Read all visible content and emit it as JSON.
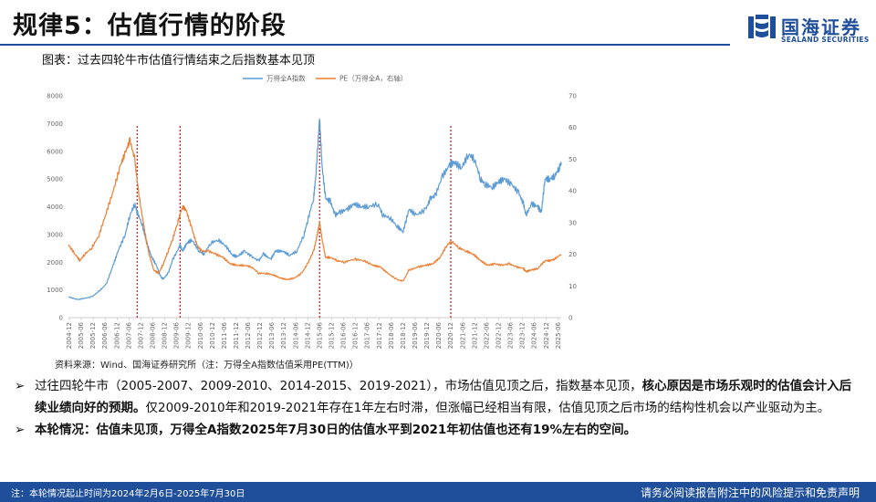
{
  "header": {
    "title": "规律5：估值行情的阶段",
    "logo_cn": "国海证券",
    "logo_en": "SEALAND SECURITIES"
  },
  "figure": {
    "caption": "图表：过去四轮牛市估值行情结束之后指数基本见顶",
    "source": "资料来源：Wind、国海证券研究所（注：万得全A指数估值采用PE(TTM)）"
  },
  "chart_data": {
    "type": "line",
    "title": "",
    "legend_position": "top-center",
    "grid": false,
    "x_labels": [
      "2004-12",
      "2005-06",
      "2005-12",
      "2006-06",
      "2006-12",
      "2007-06",
      "2007-12",
      "2008-06",
      "2008-12",
      "2009-06",
      "2009-12",
      "2010-06",
      "2010-12",
      "2011-06",
      "2011-12",
      "2012-06",
      "2012-12",
      "2013-06",
      "2013-12",
      "2014-06",
      "2014-12",
      "2015-06",
      "2015-12",
      "2016-06",
      "2016-12",
      "2017-06",
      "2017-12",
      "2018-06",
      "2018-12",
      "2019-06",
      "2019-12",
      "2020-06",
      "2020-12",
      "2021-06",
      "2021-12",
      "2022-06",
      "2022-12",
      "2023-06",
      "2023-12",
      "2024-06",
      "2024-12",
      "2025-06"
    ],
    "y_left": {
      "min": 0,
      "max": 8000,
      "ticks": [
        0,
        1000,
        2000,
        3000,
        4000,
        5000,
        6000,
        7000,
        8000
      ]
    },
    "y_right": {
      "min": 0,
      "max": 70,
      "ticks": [
        0,
        10,
        20,
        30,
        40,
        50,
        60,
        70
      ]
    },
    "series": [
      {
        "name": "万得全A指数",
        "axis": "left",
        "color": "#5b9bd5",
        "x": [
          2004.92,
          2005.3,
          2005.5,
          2005.9,
          2006.2,
          2006.5,
          2006.8,
          2007.0,
          2007.3,
          2007.5,
          2007.7,
          2007.8,
          2008.0,
          2008.2,
          2008.4,
          2008.6,
          2008.8,
          2008.9,
          2009.1,
          2009.3,
          2009.6,
          2009.7,
          2009.9,
          2010.1,
          2010.4,
          2010.6,
          2010.9,
          2011.2,
          2011.5,
          2011.8,
          2012.0,
          2012.3,
          2012.6,
          2012.9,
          2013.1,
          2013.4,
          2013.6,
          2013.9,
          2014.2,
          2014.5,
          2014.8,
          2014.95,
          2015.2,
          2015.3,
          2015.45,
          2015.55,
          2015.7,
          2015.9,
          2016.1,
          2016.3,
          2016.6,
          2016.9,
          2017.2,
          2017.5,
          2017.9,
          2018.1,
          2018.4,
          2018.7,
          2018.95,
          2019.2,
          2019.5,
          2019.9,
          2020.1,
          2020.3,
          2020.6,
          2020.9,
          2021.1,
          2021.4,
          2021.7,
          2021.95,
          2022.2,
          2022.4,
          2022.7,
          2022.95,
          2023.2,
          2023.5,
          2023.8,
          2024.0,
          2024.1,
          2024.35,
          2024.6,
          2024.75,
          2024.9,
          2025.1,
          2025.3,
          2025.5,
          2025.58
        ],
        "values": [
          750,
          650,
          680,
          750,
          950,
          1200,
          1900,
          2400,
          3000,
          3700,
          4100,
          3800,
          3400,
          2700,
          2200,
          1900,
          1450,
          1400,
          1600,
          2100,
          2600,
          2400,
          2700,
          2800,
          2400,
          2300,
          2700,
          2800,
          2600,
          2250,
          2200,
          2400,
          2200,
          2050,
          2300,
          2100,
          2400,
          2400,
          2250,
          2400,
          3000,
          3500,
          4300,
          5200,
          7200,
          5500,
          4300,
          4200,
          3700,
          3800,
          3900,
          4100,
          4000,
          4000,
          4100,
          3700,
          3600,
          3300,
          3100,
          3900,
          3700,
          3900,
          4300,
          4400,
          5100,
          5500,
          5600,
          5400,
          5900,
          5700,
          5000,
          4800,
          4700,
          4900,
          5000,
          4800,
          4500,
          4100,
          3700,
          4100,
          4000,
          3800,
          5000,
          5000,
          5100,
          5400,
          5600
        ]
      },
      {
        "name": "PE（万得全A，右轴）",
        "axis": "right",
        "color": "#ed7d31",
        "x": [
          2004.92,
          2005.2,
          2005.4,
          2005.6,
          2005.9,
          2006.2,
          2006.5,
          2006.8,
          2007.1,
          2007.3,
          2007.5,
          2007.7,
          2007.85,
          2008.1,
          2008.3,
          2008.5,
          2008.7,
          2008.9,
          2009.1,
          2009.3,
          2009.5,
          2009.7,
          2009.85,
          2010.1,
          2010.3,
          2010.5,
          2010.8,
          2011.1,
          2011.4,
          2011.7,
          2012.0,
          2012.3,
          2012.6,
          2012.9,
          2013.2,
          2013.5,
          2013.8,
          2014.1,
          2014.4,
          2014.7,
          2014.95,
          2015.2,
          2015.35,
          2015.45,
          2015.55,
          2015.7,
          2015.9,
          2016.2,
          2016.5,
          2016.9,
          2017.3,
          2017.7,
          2018.0,
          2018.3,
          2018.7,
          2018.95,
          2019.2,
          2019.6,
          2019.9,
          2020.2,
          2020.5,
          2020.8,
          2021.0,
          2021.3,
          2021.6,
          2021.9,
          2022.2,
          2022.5,
          2022.8,
          2023.1,
          2023.4,
          2023.7,
          2024.0,
          2024.1,
          2024.3,
          2024.6,
          2024.9,
          2025.1,
          2025.3,
          2025.58
        ],
        "values": [
          23,
          20,
          18,
          20,
          22,
          26,
          33,
          40,
          48,
          52,
          56,
          50,
          40,
          28,
          20,
          15,
          14,
          17,
          21,
          25,
          30,
          35,
          34,
          28,
          23,
          21,
          21,
          20,
          19,
          17,
          16.5,
          16.5,
          16,
          14,
          14,
          13.5,
          12.5,
          12,
          12.5,
          14,
          17,
          21,
          26,
          30,
          25,
          19,
          19,
          18,
          17.5,
          18.5,
          18,
          16.5,
          16,
          14,
          12,
          11.5,
          15,
          16,
          16.5,
          17,
          19,
          23,
          24,
          22,
          21,
          20,
          18,
          16.5,
          17,
          16.5,
          17,
          16,
          15.5,
          14.5,
          15,
          15.5,
          18,
          18,
          18.5,
          20
        ]
      }
    ],
    "markers_x": [
      2007.8,
      2009.6,
      2015.45,
      2020.95
    ]
  },
  "bullets": [
    {
      "segments": [
        {
          "text": "过往四轮牛市（2005-2007、2009-2010、2014-2015、2019-2021），市场估值见顶之后，指数基本见顶，",
          "bold": false
        },
        {
          "text": "核心原因是市场乐观时的估值会计入后续业绩向好的预期。",
          "bold": true
        },
        {
          "text": "仅2009-2010年和2019-2021年存在1年左右时滞，但涨幅已经相当有限，估值见顶之后市场的结构性机会以产业驱动为主。",
          "bold": false
        }
      ]
    },
    {
      "segments": [
        {
          "text": "本轮情况：估值未见顶，万得全A指数2025年7月30日的估值水平到2021年初估值也还有19%左右的空间。",
          "bold": true
        }
      ]
    }
  ],
  "footer": {
    "note": "注：本轮情况起止时间为2024年2月6日-2025年7月30日",
    "disclaimer": "请务必阅读报告附注中的风险提示和免责声明"
  },
  "colors": {
    "brand": "#1f4e9a",
    "index_line": "#5b9bd5",
    "pe_line": "#ed7d31",
    "marker": "#c00000"
  }
}
